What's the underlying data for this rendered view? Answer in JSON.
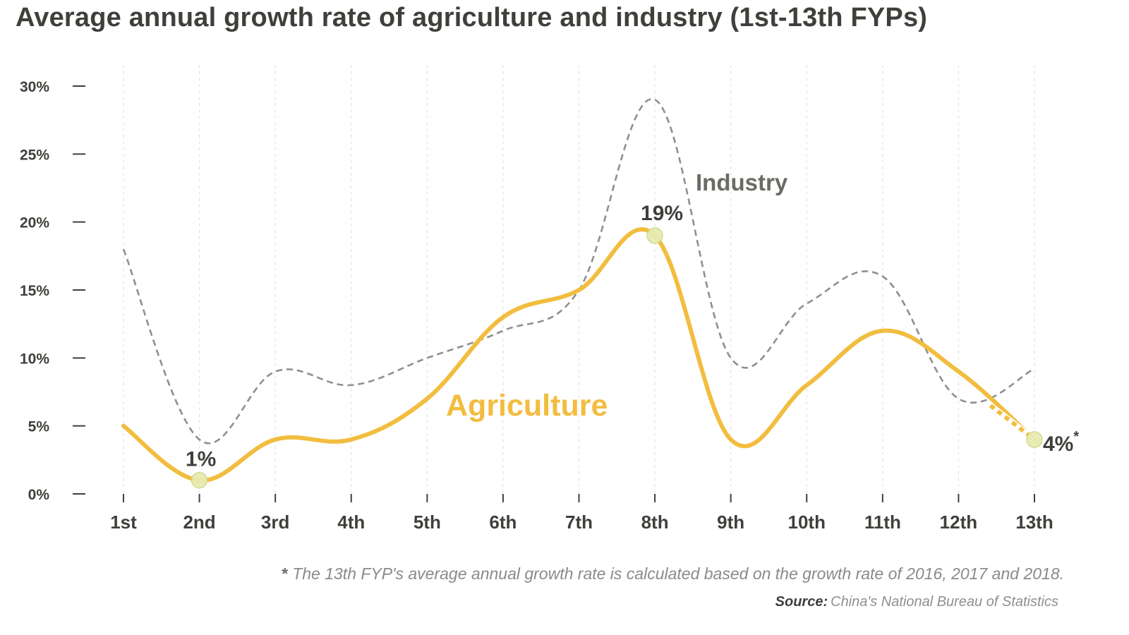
{
  "chart_data": {
    "type": "line",
    "title": "Average annual growth rate of agriculture and industry (1st-13th FYPs)",
    "categories": [
      "1st",
      "2nd",
      "3rd",
      "4th",
      "5th",
      "6th",
      "7th",
      "8th",
      "9th",
      "10th",
      "11th",
      "12th",
      "13th"
    ],
    "ylim": [
      0,
      30
    ],
    "yticks": [
      "0%",
      "5%",
      "10%",
      "15%",
      "20%",
      "25%",
      "30%"
    ],
    "grid": "vertical dashed",
    "series": [
      {
        "name": "Industry",
        "style": "dashed",
        "color": "#8f8f8f",
        "values": [
          18,
          4,
          9,
          8,
          10,
          12,
          15,
          29,
          10,
          14,
          16,
          7,
          9.2
        ]
      },
      {
        "name": "Agriculture",
        "style": "solid",
        "color": "#f2bd3f",
        "values": [
          5,
          1,
          4,
          4,
          7,
          13,
          15,
          19,
          4,
          8,
          12,
          9,
          4
        ]
      }
    ],
    "annotations": [
      {
        "category": "2nd",
        "value": 1,
        "label": "1%"
      },
      {
        "category": "8th",
        "value": 19,
        "label": "19%"
      },
      {
        "category": "13th",
        "value": 4,
        "label": "4%",
        "suffix": "*"
      }
    ],
    "footnote": {
      "marker": "*",
      "text": "The 13th FYP's average annual growth rate is calculated based on the growth rate of 2016, 2017 and 2018."
    },
    "source": {
      "lead": "Source:",
      "text": "China's National Bureau of Statistics"
    }
  }
}
